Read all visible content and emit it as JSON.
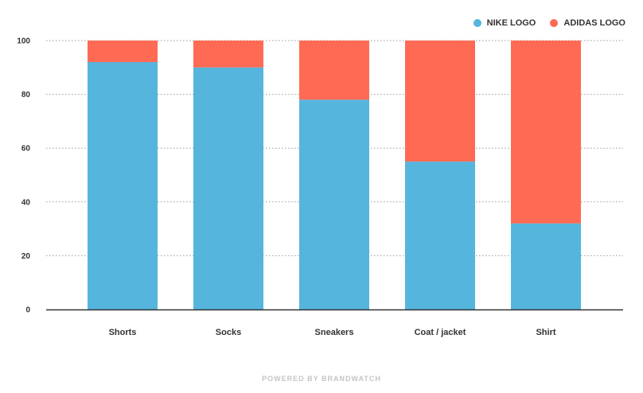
{
  "chart_data": {
    "type": "bar",
    "stacked": true,
    "categories": [
      "Shorts",
      "Socks",
      "Sneakers",
      "Coat / jacket",
      "Shirt"
    ],
    "series": [
      {
        "name": "NIKE LOGO",
        "color": "#55b5dd",
        "values": [
          92,
          90,
          78,
          55,
          32
        ]
      },
      {
        "name": "ADIDAS LOGO",
        "color": "#ff6a55",
        "values": [
          8,
          10,
          22,
          45,
          68
        ]
      }
    ],
    "yticks": [
      "0",
      "20",
      "40",
      "60",
      "80",
      "100"
    ],
    "ylim": [
      0,
      100
    ],
    "grid": true,
    "legend_position": "top-right",
    "title": "",
    "xlabel": "",
    "ylabel": ""
  },
  "footer": {
    "text": "POWERED BY BRANDWATCH"
  }
}
